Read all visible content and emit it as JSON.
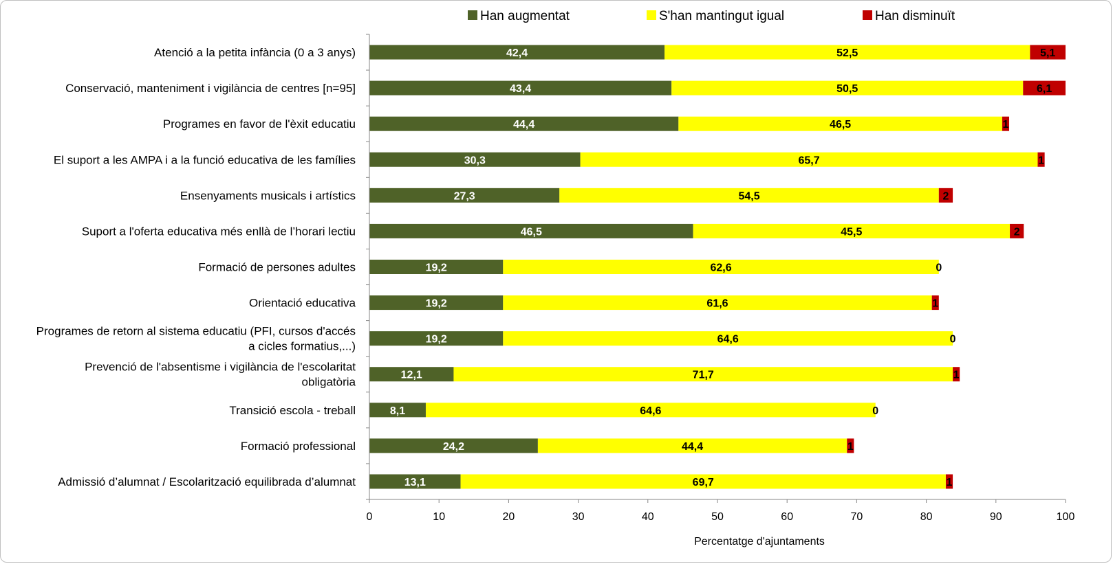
{
  "chart_data": {
    "type": "bar",
    "orientation": "horizontal",
    "stacked": true,
    "xlabel": "Percentatge d'ajuntaments",
    "ylabel": "",
    "xlim": [
      0,
      100
    ],
    "xticks": [
      "0",
      "10",
      "20",
      "30",
      "40",
      "50",
      "60",
      "70",
      "80",
      "90",
      "100"
    ],
    "grid": false,
    "legend_position": "top",
    "categories": [
      [
        "Atenció a la petita infància (0 a 3 anys)"
      ],
      [
        "Conservació, manteniment i vigilància de centres [n=95]"
      ],
      [
        "Programes en favor de l'èxit educatiu"
      ],
      [
        "El suport a les AMPA i a la funció educativa de les famílies"
      ],
      [
        "Ensenyaments musicals i artístics"
      ],
      [
        "Suport a l'oferta educativa més enllà de l’horari lectiu"
      ],
      [
        "Formació de persones adultes"
      ],
      [
        "Orientació educativa"
      ],
      [
        "Programes de retorn al sistema educatiu (PFI, cursos d'accés",
        "a cicles formatius,...)"
      ],
      [
        "Prevenció de l'absentisme i vigilància de l'escolaritat",
        "obligatòria"
      ],
      [
        "Transició escola - treball"
      ],
      [
        "Formació professional"
      ],
      [
        "Admissió d’alumnat / Escolarització equilibrada d’alumnat"
      ]
    ],
    "series": [
      {
        "name": "Han augmentat",
        "color": "#4f6228",
        "label_color": "#ffffff",
        "values": [
          42.4,
          43.4,
          44.4,
          30.3,
          27.3,
          46.5,
          19.2,
          19.2,
          19.2,
          12.1,
          8.1,
          24.2,
          13.1
        ],
        "labels": [
          "42,4",
          "43,4",
          "44,4",
          "30,3",
          "27,3",
          "46,5",
          "19,2",
          "19,2",
          "19,2",
          "12,1",
          "8,1",
          "24,2",
          "13,1"
        ]
      },
      {
        "name": "S'han mantingut igual",
        "color": "#ffff00",
        "label_color": "#000000",
        "values": [
          52.5,
          50.5,
          46.5,
          65.7,
          54.5,
          45.5,
          62.6,
          61.6,
          64.6,
          71.7,
          64.6,
          44.4,
          69.7
        ],
        "labels": [
          "52,5",
          "50,5",
          "46,5",
          "65,7",
          "54,5",
          "45,5",
          "62,6",
          "61,6",
          "64,6",
          "71,7",
          "64,6",
          "44,4",
          "69,7"
        ]
      },
      {
        "name": "Han disminuït",
        "color": "#c00000",
        "label_color": "#000000",
        "values": [
          5.1,
          6.1,
          1,
          1,
          2,
          2,
          0,
          1,
          0,
          1,
          0,
          1,
          1
        ],
        "labels": [
          "5,1",
          "6,1",
          "1",
          "1",
          "2",
          "2",
          "0",
          "1",
          "0",
          "1",
          "0",
          "1",
          "1"
        ]
      }
    ]
  }
}
